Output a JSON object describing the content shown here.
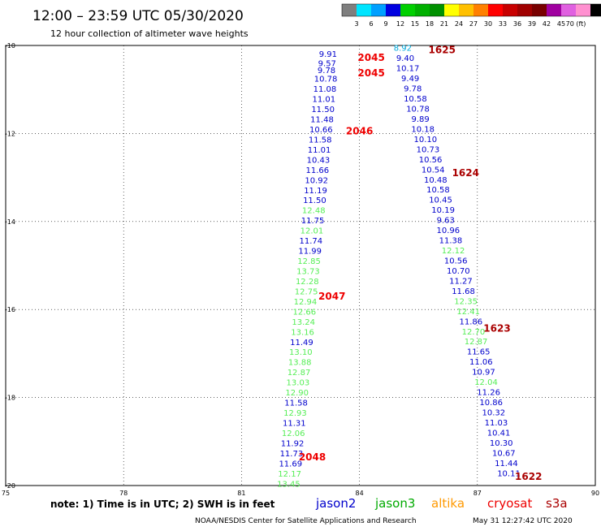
{
  "header": {
    "title": "12:00 – 23:59 UTC 05/30/2020",
    "subtitle": "12 hour collection of altimeter wave heights"
  },
  "colorbar": {
    "colors": [
      "#7f7f7f",
      "#00e5ff",
      "#00a0ff",
      "#0000e0",
      "#00d000",
      "#00b000",
      "#009000",
      "#ffff00",
      "#ffc000",
      "#ff8000",
      "#ff0000",
      "#c80000",
      "#a00000",
      "#780000",
      "#a000a0",
      "#e060e0",
      "#ff90d0",
      "#000000"
    ],
    "labels": [
      "3",
      "6",
      "9",
      "12",
      "15",
      "18",
      "21",
      "24",
      "27",
      "30",
      "33",
      "36",
      "39",
      "42",
      "45",
      "70 (ft)"
    ]
  },
  "note": "note: 1) Time is in UTC; 2) SWH is in feet",
  "satellites": [
    {
      "name": "jason2",
      "color": "#0000cc"
    },
    {
      "name": "jason3",
      "color": "#00aa00"
    },
    {
      "name": "altika",
      "color": "#ff9900"
    },
    {
      "name": "cryosat",
      "color": "#ee0000"
    },
    {
      "name": "s3a",
      "color": "#aa0000"
    }
  ],
  "footer": {
    "credit": "NOAA/NESDIS Center for Satellite Applications and Research",
    "timestamp": "May 31 12:27:42 UTC 2020"
  },
  "chart_data": {
    "type": "scatter",
    "xlim": [
      75,
      90
    ],
    "ylim": [
      -20,
      -10
    ],
    "xticks": [
      "75",
      "78",
      "81",
      "84",
      "87",
      "90"
    ],
    "yticks": [
      "-10",
      "-12",
      "-14",
      "-16",
      "-18",
      "-20"
    ],
    "grid": true,
    "value_colors": {
      "blue": "#0000cc",
      "green": "#55ee55",
      "cyan": "#00aadd"
    },
    "track_west": {
      "lon_start": 83.2,
      "lon_end": 82.2,
      "points": [
        {
          "y": -10.18,
          "v": "9.91",
          "c": "blue"
        },
        {
          "y": -10.4,
          "v": "9.57",
          "c": "blue"
        },
        {
          "y": -10.55,
          "v": "9.78",
          "c": "blue"
        },
        {
          "y": -10.75,
          "v": "10.78",
          "c": "blue"
        },
        {
          "y": -10.98,
          "v": "11.08",
          "c": "blue"
        },
        {
          "y": -11.21,
          "v": "11.01",
          "c": "blue"
        },
        {
          "y": -11.44,
          "v": "11.50",
          "c": "blue"
        },
        {
          "y": -11.67,
          "v": "11.48",
          "c": "blue"
        },
        {
          "y": -11.9,
          "v": "10.66",
          "c": "blue"
        },
        {
          "y": -12.13,
          "v": "11.58",
          "c": "blue"
        },
        {
          "y": -12.36,
          "v": "11.01",
          "c": "blue"
        },
        {
          "y": -12.59,
          "v": "10.43",
          "c": "blue"
        },
        {
          "y": -12.82,
          "v": "11.66",
          "c": "blue"
        },
        {
          "y": -13.05,
          "v": "10.92",
          "c": "blue"
        },
        {
          "y": -13.28,
          "v": "11.19",
          "c": "blue"
        },
        {
          "y": -13.51,
          "v": "11.50",
          "c": "blue"
        },
        {
          "y": -13.74,
          "v": "12.48",
          "c": "green"
        },
        {
          "y": -13.97,
          "v": "11.75",
          "c": "blue"
        },
        {
          "y": -14.2,
          "v": "12.01",
          "c": "green"
        },
        {
          "y": -14.43,
          "v": "11.74",
          "c": "blue"
        },
        {
          "y": -14.66,
          "v": "11.99",
          "c": "blue"
        },
        {
          "y": -14.89,
          "v": "12.85",
          "c": "green"
        },
        {
          "y": -15.12,
          "v": "13.73",
          "c": "green"
        },
        {
          "y": -15.35,
          "v": "12.28",
          "c": "green"
        },
        {
          "y": -15.58,
          "v": "12.75",
          "c": "green"
        },
        {
          "y": -15.81,
          "v": "12.94",
          "c": "green"
        },
        {
          "y": -16.04,
          "v": "12.66",
          "c": "green"
        },
        {
          "y": -16.27,
          "v": "13.24",
          "c": "green"
        },
        {
          "y": -16.5,
          "v": "13.16",
          "c": "green"
        },
        {
          "y": -16.73,
          "v": "11.49",
          "c": "blue"
        },
        {
          "y": -16.96,
          "v": "13.10",
          "c": "green"
        },
        {
          "y": -17.19,
          "v": "13.88",
          "c": "green"
        },
        {
          "y": -17.42,
          "v": "12.87",
          "c": "green"
        },
        {
          "y": -17.65,
          "v": "13.03",
          "c": "green"
        },
        {
          "y": -17.88,
          "v": "12.90",
          "c": "green"
        },
        {
          "y": -18.11,
          "v": "11.58",
          "c": "blue"
        },
        {
          "y": -18.34,
          "v": "12.93",
          "c": "green"
        },
        {
          "y": -18.57,
          "v": "11.31",
          "c": "blue"
        },
        {
          "y": -18.8,
          "v": "12.06",
          "c": "green"
        },
        {
          "y": -19.03,
          "v": "11.92",
          "c": "blue"
        },
        {
          "y": -19.26,
          "v": "11.73",
          "c": "blue"
        },
        {
          "y": -19.49,
          "v": "11.69",
          "c": "blue"
        },
        {
          "y": -19.72,
          "v": "12.17",
          "c": "green"
        },
        {
          "y": -19.95,
          "v": "13.45",
          "c": "green"
        }
      ]
    },
    "track_east": {
      "lon_start": 85.1,
      "lon_end": 87.8,
      "points": [
        {
          "y": -10.05,
          "v": "8.92",
          "c": "cyan"
        },
        {
          "y": -10.28,
          "v": "9.40",
          "c": "blue"
        },
        {
          "y": -10.51,
          "v": "10.17",
          "c": "blue"
        },
        {
          "y": -10.74,
          "v": "9.49",
          "c": "blue"
        },
        {
          "y": -10.97,
          "v": "9.78",
          "c": "blue"
        },
        {
          "y": -11.2,
          "v": "10.58",
          "c": "blue"
        },
        {
          "y": -11.43,
          "v": "10.78",
          "c": "blue"
        },
        {
          "y": -11.66,
          "v": "9.89",
          "c": "blue"
        },
        {
          "y": -11.89,
          "v": "10.18",
          "c": "blue"
        },
        {
          "y": -12.12,
          "v": "10.10",
          "c": "blue"
        },
        {
          "y": -12.35,
          "v": "10.73",
          "c": "blue"
        },
        {
          "y": -12.58,
          "v": "10.56",
          "c": "blue"
        },
        {
          "y": -12.81,
          "v": "10.54",
          "c": "blue"
        },
        {
          "y": -13.04,
          "v": "10.48",
          "c": "blue"
        },
        {
          "y": -13.27,
          "v": "10.58",
          "c": "blue"
        },
        {
          "y": -13.5,
          "v": "10.45",
          "c": "blue"
        },
        {
          "y": -13.73,
          "v": "10.19",
          "c": "blue"
        },
        {
          "y": -13.96,
          "v": "9.63",
          "c": "blue"
        },
        {
          "y": -14.19,
          "v": "10.96",
          "c": "blue"
        },
        {
          "y": -14.42,
          "v": "11.38",
          "c": "blue"
        },
        {
          "y": -14.65,
          "v": "12.12",
          "c": "green"
        },
        {
          "y": -14.88,
          "v": "10.56",
          "c": "blue"
        },
        {
          "y": -15.11,
          "v": "10.70",
          "c": "blue"
        },
        {
          "y": -15.34,
          "v": "11.27",
          "c": "blue"
        },
        {
          "y": -15.57,
          "v": "11.68",
          "c": "blue"
        },
        {
          "y": -15.8,
          "v": "12.35",
          "c": "green"
        },
        {
          "y": -16.03,
          "v": "12.41",
          "c": "green"
        },
        {
          "y": -16.26,
          "v": "11.86",
          "c": "blue"
        },
        {
          "y": -16.49,
          "v": "12.70",
          "c": "green"
        },
        {
          "y": -16.72,
          "v": "12.87",
          "c": "green"
        },
        {
          "y": -16.95,
          "v": "11.65",
          "c": "blue"
        },
        {
          "y": -17.18,
          "v": "11.06",
          "c": "blue"
        },
        {
          "y": -17.41,
          "v": "10.97",
          "c": "blue"
        },
        {
          "y": -17.64,
          "v": "12.04",
          "c": "green"
        },
        {
          "y": -17.87,
          "v": "11.26",
          "c": "blue"
        },
        {
          "y": -18.1,
          "v": "10.86",
          "c": "blue"
        },
        {
          "y": -18.33,
          "v": "10.32",
          "c": "blue"
        },
        {
          "y": -18.56,
          "v": "11.03",
          "c": "blue"
        },
        {
          "y": -18.79,
          "v": "10.41",
          "c": "blue"
        },
        {
          "y": -19.02,
          "v": "10.30",
          "c": "blue"
        },
        {
          "y": -19.25,
          "v": "10.67",
          "c": "blue"
        },
        {
          "y": -19.48,
          "v": "11.44",
          "c": "blue"
        },
        {
          "y": -19.71,
          "v": "10.11",
          "c": "blue"
        }
      ]
    },
    "pass_labels": [
      {
        "x": 84.3,
        "y": -10.28,
        "text": "2045",
        "color": "#ee0000"
      },
      {
        "x": 84.3,
        "y": -10.63,
        "text": "2045",
        "color": "#ee0000"
      },
      {
        "x": 84.0,
        "y": -11.95,
        "text": "2046",
        "color": "#ee0000"
      },
      {
        "x": 83.3,
        "y": -15.7,
        "text": "2047",
        "color": "#ee0000"
      },
      {
        "x": 82.8,
        "y": -19.35,
        "text": "2048",
        "color": "#ee0000"
      },
      {
        "x": 86.1,
        "y": -10.1,
        "text": "1625",
        "color": "#aa0000"
      },
      {
        "x": 86.7,
        "y": -12.9,
        "text": "1624",
        "color": "#aa0000"
      },
      {
        "x": 87.5,
        "y": -16.43,
        "text": "1623",
        "color": "#aa0000"
      },
      {
        "x": 88.3,
        "y": -19.8,
        "text": "1622",
        "color": "#aa0000"
      }
    ]
  }
}
